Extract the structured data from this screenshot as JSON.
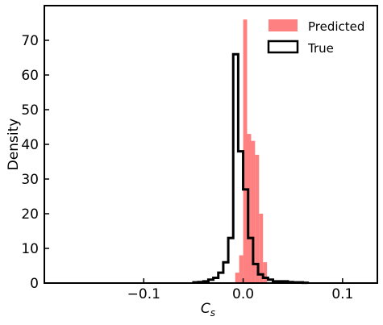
{
  "chart_data": {
    "type": "histogram",
    "xlabel_main": "C",
    "xlabel_sub": "s",
    "ylabel": "Density",
    "xlim": [
      -0.2,
      0.135
    ],
    "ylim": [
      0,
      80
    ],
    "xticks": [
      -0.1,
      0.0,
      0.1
    ],
    "xtick_labels": [
      "−0.1",
      "0.0",
      "0.1"
    ],
    "yticks": [
      0,
      10,
      20,
      30,
      40,
      50,
      60,
      70
    ],
    "ytick_labels": [
      "0",
      "10",
      "20",
      "30",
      "40",
      "50",
      "60",
      "70"
    ],
    "grid": false,
    "legend_position": "top-right",
    "series": [
      {
        "name": "Predicted",
        "style": "filled",
        "color": "#ff8080",
        "bin_edges": [
          -0.008,
          -0.004,
          0.0,
          0.004,
          0.008,
          0.012,
          0.016,
          0.02,
          0.024
        ],
        "values": [
          3,
          8,
          76,
          43,
          41,
          37,
          20,
          6
        ]
      },
      {
        "name": "True",
        "style": "step",
        "color": "#000000",
        "bin_edges": [
          -0.05,
          -0.045,
          -0.04,
          -0.035,
          -0.03,
          -0.025,
          -0.02,
          -0.015,
          -0.01,
          -0.005,
          0.0,
          0.005,
          0.01,
          0.015,
          0.02,
          0.025,
          0.03,
          0.035,
          0.04,
          0.045,
          0.05,
          0.055,
          0.06,
          0.065
        ],
        "values": [
          0.2,
          0.3,
          0.5,
          1,
          1.5,
          3,
          6,
          13,
          66,
          38,
          27,
          13,
          5.5,
          2.5,
          1.5,
          1,
          0.5,
          0.5,
          0.5,
          0.3,
          0.2,
          0.2,
          0.1
        ]
      }
    ]
  }
}
